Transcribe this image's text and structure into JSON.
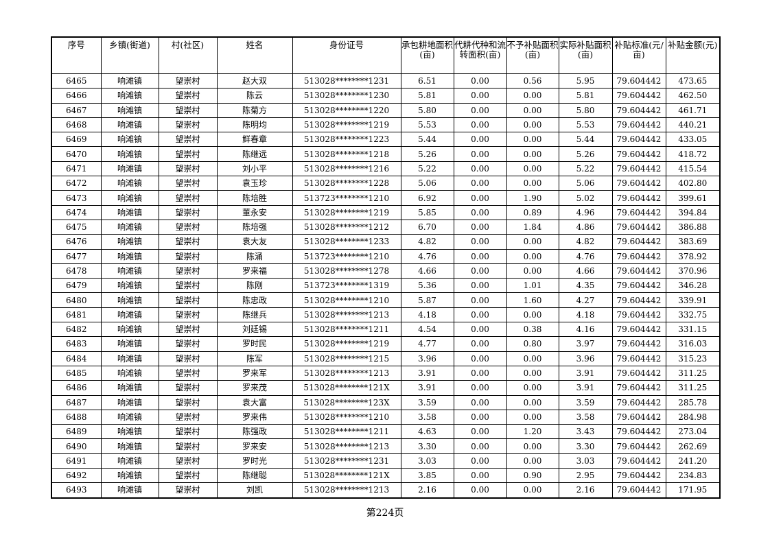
{
  "headers": [
    "序号",
    "乡镇(街道)",
    "村(社区)",
    "姓名",
    "身份证号",
    "承包耕地面积(亩)",
    "代耕代种和流转面积(亩)",
    "不予补贴面积(亩)",
    "实际补贴面积(亩)",
    "补贴标准(元/亩)",
    "补贴金额(元)"
  ],
  "rows": [
    [
      "6465",
      "响滩镇",
      "望崇村",
      "赵大双",
      "513028********1231",
      "6.51",
      "0.00",
      "0.56",
      "5.95",
      "79.604442",
      "473.65"
    ],
    [
      "6466",
      "响滩镇",
      "望崇村",
      "陈云",
      "513028********1230",
      "5.81",
      "0.00",
      "0.00",
      "5.81",
      "79.604442",
      "462.50"
    ],
    [
      "6467",
      "响滩镇",
      "望崇村",
      "陈菊方",
      "513028********1220",
      "5.80",
      "0.00",
      "0.00",
      "5.80",
      "79.604442",
      "461.71"
    ],
    [
      "6468",
      "响滩镇",
      "望崇村",
      "陈明均",
      "513028********1219",
      "5.53",
      "0.00",
      "0.00",
      "5.53",
      "79.604442",
      "440.21"
    ],
    [
      "6469",
      "响滩镇",
      "望崇村",
      "鲜春章",
      "513028********1223",
      "5.44",
      "0.00",
      "0.00",
      "5.44",
      "79.604442",
      "433.05"
    ],
    [
      "6470",
      "响滩镇",
      "望崇村",
      "陈继远",
      "513028********1218",
      "5.26",
      "0.00",
      "0.00",
      "5.26",
      "79.604442",
      "418.72"
    ],
    [
      "6471",
      "响滩镇",
      "望崇村",
      "刘小平",
      "513028********1216",
      "5.22",
      "0.00",
      "0.00",
      "5.22",
      "79.604442",
      "415.54"
    ],
    [
      "6472",
      "响滩镇",
      "望崇村",
      "袁玉珍",
      "513028********1228",
      "5.06",
      "0.00",
      "0.00",
      "5.06",
      "79.604442",
      "402.80"
    ],
    [
      "6473",
      "响滩镇",
      "望崇村",
      "陈培胜",
      "513723********1210",
      "6.92",
      "0.00",
      "1.90",
      "5.02",
      "79.604442",
      "399.61"
    ],
    [
      "6474",
      "响滩镇",
      "望崇村",
      "董永安",
      "513028********1219",
      "5.85",
      "0.00",
      "0.89",
      "4.96",
      "79.604442",
      "394.84"
    ],
    [
      "6475",
      "响滩镇",
      "望崇村",
      "陈培强",
      "513028********1212",
      "6.70",
      "0.00",
      "1.84",
      "4.86",
      "79.604442",
      "386.88"
    ],
    [
      "6476",
      "响滩镇",
      "望崇村",
      "袁大友",
      "513028********1233",
      "4.82",
      "0.00",
      "0.00",
      "4.82",
      "79.604442",
      "383.69"
    ],
    [
      "6477",
      "响滩镇",
      "望崇村",
      "陈涌",
      "513723********1210",
      "4.76",
      "0.00",
      "0.00",
      "4.76",
      "79.604442",
      "378.92"
    ],
    [
      "6478",
      "响滩镇",
      "望崇村",
      "罗来福",
      "513028********1278",
      "4.66",
      "0.00",
      "0.00",
      "4.66",
      "79.604442",
      "370.96"
    ],
    [
      "6479",
      "响滩镇",
      "望崇村",
      "陈刚",
      "513723********1319",
      "5.36",
      "0.00",
      "1.01",
      "4.35",
      "79.604442",
      "346.28"
    ],
    [
      "6480",
      "响滩镇",
      "望崇村",
      "陈忠政",
      "513028********1210",
      "5.87",
      "0.00",
      "1.60",
      "4.27",
      "79.604442",
      "339.91"
    ],
    [
      "6481",
      "响滩镇",
      "望崇村",
      "陈继兵",
      "513028********1213",
      "4.18",
      "0.00",
      "0.00",
      "4.18",
      "79.604442",
      "332.75"
    ],
    [
      "6482",
      "响滩镇",
      "望崇村",
      "刘廷锡",
      "513028********1211",
      "4.54",
      "0.00",
      "0.38",
      "4.16",
      "79.604442",
      "331.15"
    ],
    [
      "6483",
      "响滩镇",
      "望崇村",
      "罗时民",
      "513028********1219",
      "4.77",
      "0.00",
      "0.80",
      "3.97",
      "79.604442",
      "316.03"
    ],
    [
      "6484",
      "响滩镇",
      "望崇村",
      "陈军",
      "513028********1215",
      "3.96",
      "0.00",
      "0.00",
      "3.96",
      "79.604442",
      "315.23"
    ],
    [
      "6485",
      "响滩镇",
      "望崇村",
      "罗来军",
      "513028********1213",
      "3.91",
      "0.00",
      "0.00",
      "3.91",
      "79.604442",
      "311.25"
    ],
    [
      "6486",
      "响滩镇",
      "望崇村",
      "罗来茂",
      "513028********121X",
      "3.91",
      "0.00",
      "0.00",
      "3.91",
      "79.604442",
      "311.25"
    ],
    [
      "6487",
      "响滩镇",
      "望崇村",
      "袁大富",
      "513028********123X",
      "3.59",
      "0.00",
      "0.00",
      "3.59",
      "79.604442",
      "285.78"
    ],
    [
      "6488",
      "响滩镇",
      "望崇村",
      "罗来伟",
      "513028********1210",
      "3.58",
      "0.00",
      "0.00",
      "3.58",
      "79.604442",
      "284.98"
    ],
    [
      "6489",
      "响滩镇",
      "望崇村",
      "陈强政",
      "513028********1211",
      "4.63",
      "0.00",
      "1.20",
      "3.43",
      "79.604442",
      "273.04"
    ],
    [
      "6490",
      "响滩镇",
      "望崇村",
      "罗来安",
      "513028********1213",
      "3.30",
      "0.00",
      "0.00",
      "3.30",
      "79.604442",
      "262.69"
    ],
    [
      "6491",
      "响滩镇",
      "望崇村",
      "罗时光",
      "513028********1231",
      "3.03",
      "0.00",
      "0.00",
      "3.03",
      "79.604442",
      "241.20"
    ],
    [
      "6492",
      "响滩镇",
      "望崇村",
      "陈继聪",
      "513028********121X",
      "3.85",
      "0.00",
      "0.90",
      "2.95",
      "79.604442",
      "234.83"
    ],
    [
      "6493",
      "响滩镇",
      "望崇村",
      "刘凯",
      "513028********1213",
      "2.16",
      "0.00",
      "0.00",
      "2.16",
      "79.604442",
      "171.95"
    ]
  ],
  "footer": {
    "page_label": "第224页"
  }
}
